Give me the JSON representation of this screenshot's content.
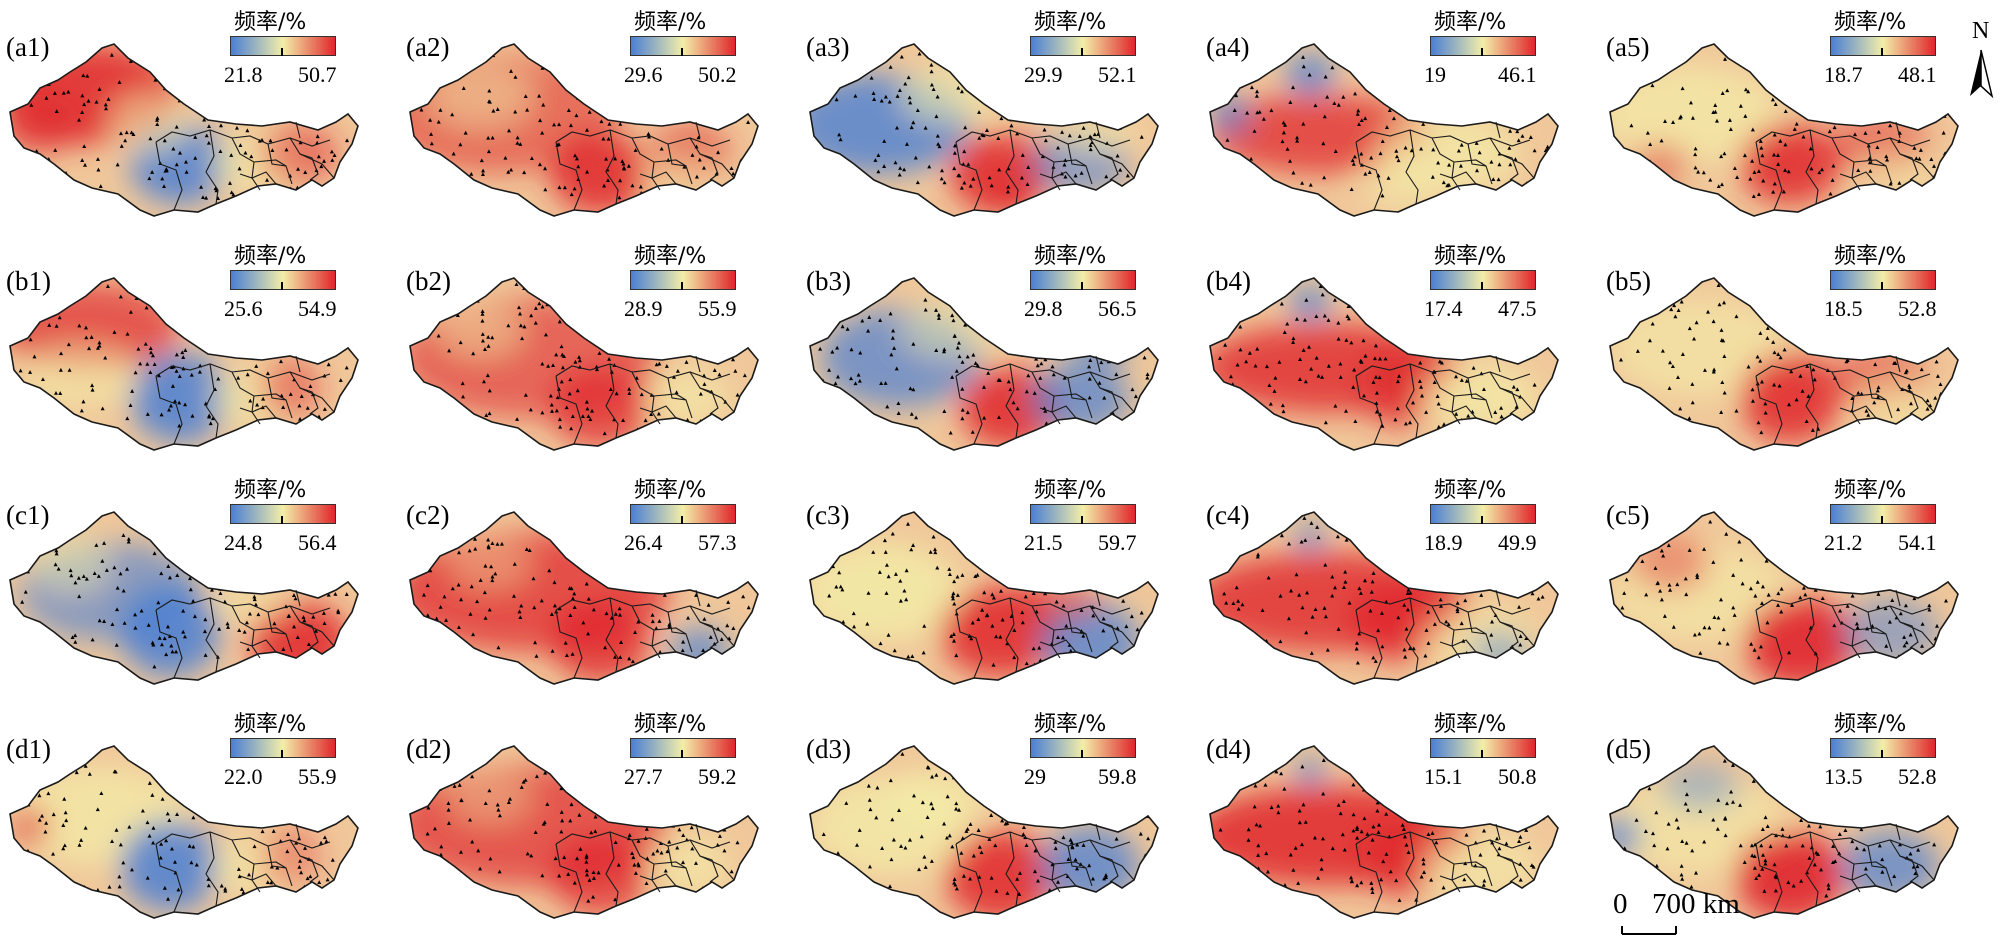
{
  "legend_title": "频率/%",
  "north_label": "N",
  "scale": {
    "zero": "0",
    "distance": "700 km"
  },
  "colors": {
    "low": "#4a7fd4",
    "mid": "#f3eea8",
    "high": "#e0262c",
    "boundary": "#1a1a1a"
  },
  "panels": [
    {
      "label": "(a1)",
      "min": "21.8",
      "max": "50.7",
      "pattern": "a1"
    },
    {
      "label": "(a2)",
      "min": "29.6",
      "max": "50.2",
      "pattern": "a2"
    },
    {
      "label": "(a3)",
      "min": "29.9",
      "max": "52.1",
      "pattern": "a3"
    },
    {
      "label": "(a4)",
      "min": "19",
      "max": "46.1",
      "pattern": "a4"
    },
    {
      "label": "(a5)",
      "min": "18.7",
      "max": "48.1",
      "pattern": "a5"
    },
    {
      "label": "(b1)",
      "min": "25.6",
      "max": "54.9",
      "pattern": "b1"
    },
    {
      "label": "(b2)",
      "min": "28.9",
      "max": "55.9",
      "pattern": "b2"
    },
    {
      "label": "(b3)",
      "min": "29.8",
      "max": "56.5",
      "pattern": "b3"
    },
    {
      "label": "(b4)",
      "min": "17.4",
      "max": "47.5",
      "pattern": "b4"
    },
    {
      "label": "(b5)",
      "min": "18.5",
      "max": "52.8",
      "pattern": "b5"
    },
    {
      "label": "(c1)",
      "min": "24.8",
      "max": "56.4",
      "pattern": "c1"
    },
    {
      "label": "(c2)",
      "min": "26.4",
      "max": "57.3",
      "pattern": "c2"
    },
    {
      "label": "(c3)",
      "min": "21.5",
      "max": "59.7",
      "pattern": "c3"
    },
    {
      "label": "(c4)",
      "min": "18.9",
      "max": "49.9",
      "pattern": "c4"
    },
    {
      "label": "(c5)",
      "min": "21.2",
      "max": "54.1",
      "pattern": "c5"
    },
    {
      "label": "(d1)",
      "min": "22.0",
      "max": "55.9",
      "pattern": "d1"
    },
    {
      "label": "(d2)",
      "min": "27.7",
      "max": "59.2",
      "pattern": "d2"
    },
    {
      "label": "(d3)",
      "min": "29",
      "max": "59.8",
      "pattern": "d3"
    },
    {
      "label": "(d4)",
      "min": "15.1",
      "max": "50.8",
      "pattern": "d4"
    },
    {
      "label": "(d5)",
      "min": "13.5",
      "max": "52.8",
      "pattern": "d5"
    }
  ]
}
